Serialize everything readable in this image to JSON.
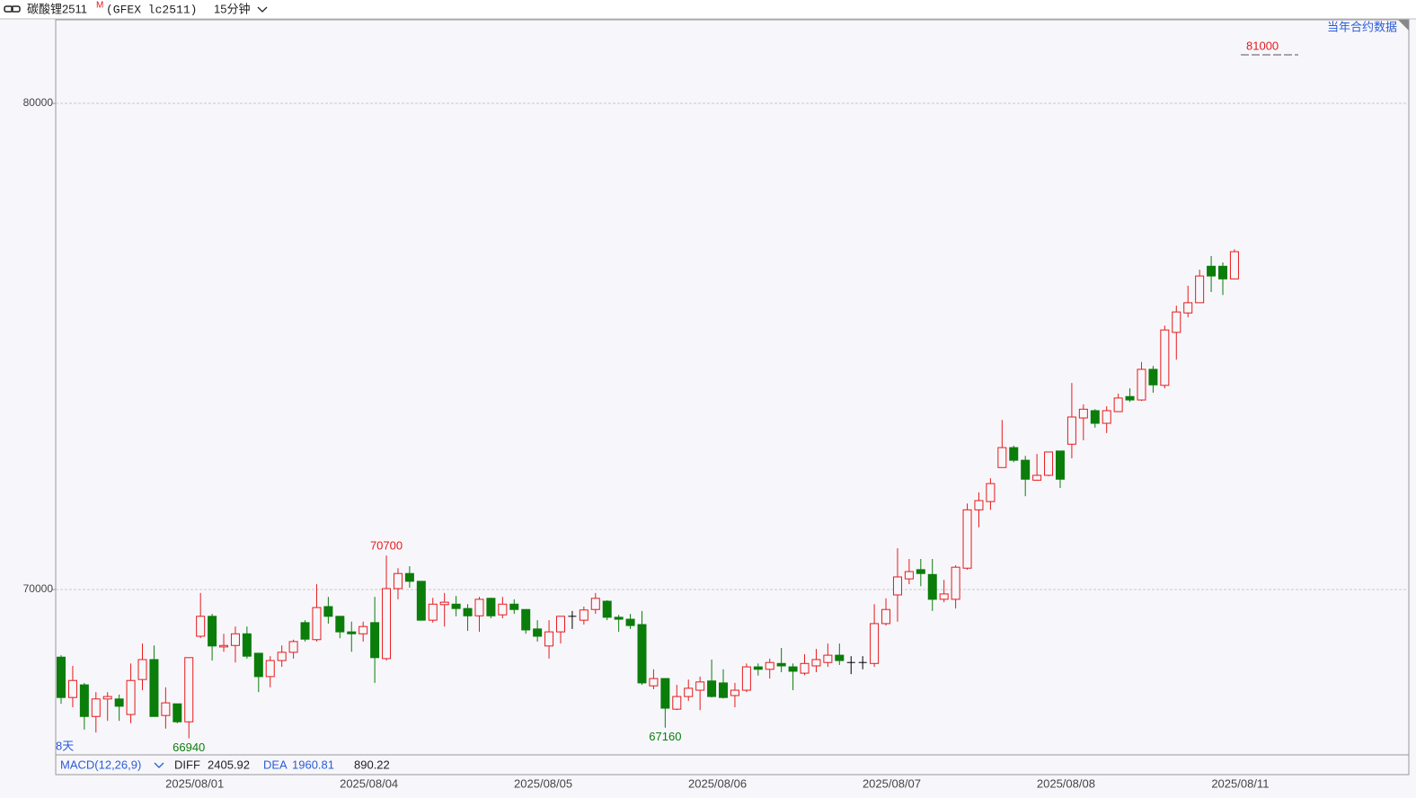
{
  "header": {
    "symbol": "碳酸锂2511",
    "marker": "M",
    "exchange": "(GFEX lc2511)",
    "period": "15分钟"
  },
  "chart_data": {
    "type": "candlestick",
    "contract_link": "当年合约数据",
    "range_label": "8天",
    "categories": [
      null,
      null,
      null,
      null,
      null,
      null,
      null,
      null,
      null,
      null,
      null,
      "2025/08/01",
      null,
      null,
      null,
      null,
      null,
      null,
      null,
      null,
      null,
      null,
      null,
      null,
      null,
      null,
      "2025/08/04",
      null,
      null,
      null,
      null,
      null,
      null,
      null,
      null,
      null,
      null,
      null,
      null,
      null,
      null,
      "2025/08/05",
      null,
      null,
      null,
      null,
      null,
      null,
      null,
      null,
      null,
      null,
      null,
      null,
      null,
      null,
      "2025/08/06",
      null,
      null,
      null,
      null,
      null,
      null,
      null,
      null,
      null,
      null,
      null,
      null,
      null,
      null,
      "2025/08/07",
      null,
      null,
      null,
      null,
      null,
      null,
      null,
      null,
      null,
      null,
      null,
      null,
      null,
      null,
      "2025/08/08",
      null,
      null,
      null,
      null,
      null,
      null,
      null,
      null,
      null,
      null,
      null,
      null,
      null,
      null,
      "2025/08/11"
    ],
    "open": [
      68610,
      67780,
      68040,
      67390,
      67750,
      67750,
      67430,
      68150,
      68560,
      67410,
      67650,
      67280,
      69040,
      69450,
      68820,
      68850,
      69090,
      68690,
      68210,
      68540,
      68710,
      69320,
      68970,
      69650,
      69450,
      69130,
      69090,
      69320,
      68580,
      70020,
      70330,
      70170,
      69370,
      69690,
      69700,
      69610,
      69460,
      69820,
      69480,
      69700,
      69590,
      69190,
      68840,
      69130,
      69450,
      69370,
      69590,
      69760,
      69430,
      69390,
      69280,
      68020,
      68170,
      67540,
      67800,
      67930,
      68120,
      68080,
      67820,
      67930,
      68410,
      68360,
      68480,
      68410,
      68280,
      68430,
      68500,
      68650,
      68500,
      68500,
      68480,
      69300,
      69890,
      70220,
      70410,
      70310,
      69800,
      69800,
      70440,
      71640,
      71810,
      72510,
      72920,
      72660,
      72250,
      72350,
      72850,
      72990,
      73530,
      73680,
      73420,
      73660,
      73970,
      73900,
      74530,
      74200,
      75290,
      75690,
      75900,
      76650,
      76650,
      76390
    ],
    "high": [
      68650,
      68430,
      68080,
      67890,
      67890,
      67840,
      68480,
      68890,
      68850,
      67990,
      67650,
      68600,
      69930,
      69500,
      69090,
      69240,
      69240,
      68690,
      68630,
      68850,
      68970,
      69370,
      70110,
      69850,
      69450,
      69340,
      69340,
      69850,
      70700,
      70440,
      70480,
      70170,
      69830,
      69930,
      69870,
      69700,
      69850,
      69830,
      69850,
      69800,
      69590,
      69370,
      69370,
      69450,
      69560,
      69650,
      69930,
      69780,
      69480,
      69500,
      69560,
      68360,
      68170,
      68040,
      68150,
      68210,
      68560,
      68360,
      68080,
      68480,
      68480,
      68580,
      68800,
      68480,
      68670,
      68780,
      68890,
      68890,
      68630,
      68630,
      69700,
      69820,
      70850,
      70630,
      70630,
      70630,
      70200,
      70500,
      71770,
      72000,
      72290,
      73490,
      72960,
      72750,
      72790,
      72830,
      72850,
      74250,
      73810,
      73710,
      73770,
      74030,
      74140,
      74680,
      74600,
      75430,
      75840,
      76250,
      76580,
      76860,
      76730,
      77000
    ],
    "low": [
      67650,
      67580,
      67120,
      67060,
      67300,
      67300,
      67250,
      67930,
      67390,
      67140,
      67250,
      66940,
      69000,
      68540,
      68720,
      68500,
      68580,
      67890,
      67990,
      68410,
      68580,
      68930,
      68930,
      69300,
      69000,
      68720,
      68930,
      68080,
      68540,
      69800,
      70040,
      69370,
      69320,
      69240,
      69450,
      69150,
      69130,
      69410,
      69410,
      69500,
      69090,
      68930,
      68580,
      68890,
      69190,
      69280,
      69500,
      69370,
      69130,
      69190,
      68040,
      67950,
      67160,
      67520,
      67710,
      67520,
      67780,
      67760,
      67580,
      67890,
      68230,
      68170,
      68300,
      67930,
      68240,
      68300,
      68410,
      68450,
      68260,
      68360,
      68410,
      69260,
      69340,
      70110,
      70070,
      69560,
      69740,
      69610,
      70410,
      71280,
      71640,
      72510,
      72620,
      71920,
      72240,
      72330,
      72090,
      72700,
      73070,
      73330,
      73220,
      73660,
      73860,
      73880,
      74050,
      74140,
      74730,
      75600,
      75900,
      76120,
      76060,
      76390
    ],
    "close": [
      67780,
      68130,
      67390,
      67750,
      67800,
      67600,
      68130,
      68560,
      67390,
      67670,
      67280,
      68600,
      69450,
      68840,
      68850,
      69090,
      68630,
      68210,
      68540,
      68710,
      68930,
      68980,
      69630,
      69450,
      69130,
      69090,
      69240,
      68600,
      70020,
      70330,
      70170,
      69370,
      69700,
      69740,
      69610,
      69460,
      69800,
      69460,
      69700,
      69590,
      69170,
      69040,
      69130,
      69450,
      69450,
      69580,
      69820,
      69430,
      69390,
      69260,
      68080,
      68170,
      67560,
      67800,
      67970,
      68100,
      67800,
      67780,
      67930,
      68410,
      68360,
      68500,
      68430,
      68320,
      68480,
      68560,
      68650,
      68540,
      68500,
      68500,
      69300,
      69590,
      70260,
      70370,
      70330,
      69800,
      69910,
      70460,
      71640,
      71830,
      72180,
      72920,
      72660,
      72270,
      72350,
      72830,
      72270,
      73550,
      73710,
      73420,
      73680,
      73940,
      73900,
      74530,
      74210,
      75340,
      75710,
      75900,
      76450,
      76450,
      76390,
      76950
    ],
    "up_color": "#e8191b",
    "down_color": "#0b7d0b",
    "doji_color": "#000000",
    "ylim": [
      66600,
      81720
    ],
    "yticks": [
      70000,
      80000
    ],
    "grid": true,
    "limit_up": 81000,
    "macd": {
      "label": "MACD(12,26,9)",
      "diff_label": "DIFF",
      "diff": 2405.92,
      "dea_label": "DEA",
      "dea": 1960.81,
      "macd": 890.22
    }
  }
}
